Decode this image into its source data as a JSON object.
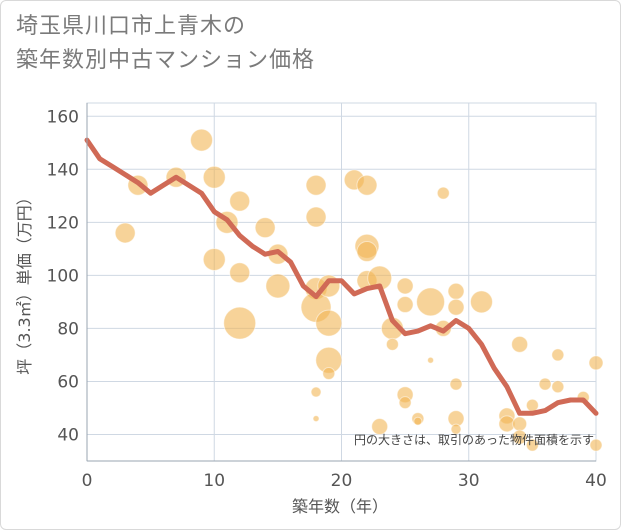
{
  "title_line1": "埼玉県川口市上青木の",
  "title_line2": "築年数別中古マンション価格",
  "colors": {
    "bubble": "#f2b555",
    "line": "#d06a56",
    "grid": "#cfd8e3",
    "axis": "#9aa5b1"
  },
  "chart_data": {
    "type": "scatter",
    "xlabel": "築年数（年）",
    "ylabel": "坪（3.3㎡）単価（万円）",
    "xlim": [
      0,
      40
    ],
    "ylim": [
      30,
      165
    ],
    "xticks": [
      "0",
      "10",
      "20",
      "30",
      "40"
    ],
    "yticks": [
      "40",
      "60",
      "80",
      "100",
      "120",
      "140",
      "160"
    ],
    "note": "円の大きさは、取引のあった物件面積を示す",
    "bubbles": [
      {
        "x": 3,
        "y": 116,
        "r": 10
      },
      {
        "x": 4,
        "y": 134,
        "r": 10
      },
      {
        "x": 7,
        "y": 137,
        "r": 10
      },
      {
        "x": 9,
        "y": 151,
        "r": 11
      },
      {
        "x": 10,
        "y": 137,
        "r": 11
      },
      {
        "x": 10,
        "y": 106,
        "r": 11
      },
      {
        "x": 11,
        "y": 120,
        "r": 11
      },
      {
        "x": 12,
        "y": 128,
        "r": 10
      },
      {
        "x": 12,
        "y": 101,
        "r": 10
      },
      {
        "x": 12,
        "y": 82,
        "r": 16
      },
      {
        "x": 14,
        "y": 118,
        "r": 10
      },
      {
        "x": 15,
        "y": 108,
        "r": 10
      },
      {
        "x": 15,
        "y": 96,
        "r": 12
      },
      {
        "x": 18,
        "y": 134,
        "r": 10
      },
      {
        "x": 18,
        "y": 122,
        "r": 10
      },
      {
        "x": 18,
        "y": 95,
        "r": 11
      },
      {
        "x": 18,
        "y": 88,
        "r": 15
      },
      {
        "x": 18,
        "y": 56,
        "r": 5
      },
      {
        "x": 18,
        "y": 46,
        "r": 3
      },
      {
        "x": 19,
        "y": 96,
        "r": 11
      },
      {
        "x": 19,
        "y": 82,
        "r": 13
      },
      {
        "x": 19,
        "y": 68,
        "r": 13
      },
      {
        "x": 19,
        "y": 63,
        "r": 6
      },
      {
        "x": 21,
        "y": 136,
        "r": 10
      },
      {
        "x": 22,
        "y": 134,
        "r": 10
      },
      {
        "x": 22,
        "y": 111,
        "r": 12
      },
      {
        "x": 22,
        "y": 109,
        "r": 10
      },
      {
        "x": 22,
        "y": 98,
        "r": 10
      },
      {
        "x": 23,
        "y": 99,
        "r": 12
      },
      {
        "x": 23,
        "y": 43,
        "r": 8
      },
      {
        "x": 24,
        "y": 80,
        "r": 11
      },
      {
        "x": 24,
        "y": 74,
        "r": 6
      },
      {
        "x": 25,
        "y": 96,
        "r": 8
      },
      {
        "x": 25,
        "y": 89,
        "r": 8
      },
      {
        "x": 25,
        "y": 55,
        "r": 8
      },
      {
        "x": 25,
        "y": 52,
        "r": 6
      },
      {
        "x": 26,
        "y": 46,
        "r": 6
      },
      {
        "x": 26,
        "y": 45,
        "r": 4
      },
      {
        "x": 27,
        "y": 90,
        "r": 14
      },
      {
        "x": 27,
        "y": 68,
        "r": 3
      },
      {
        "x": 28,
        "y": 131,
        "r": 6
      },
      {
        "x": 28,
        "y": 80,
        "r": 8
      },
      {
        "x": 29,
        "y": 94,
        "r": 8
      },
      {
        "x": 29,
        "y": 88,
        "r": 8
      },
      {
        "x": 29,
        "y": 59,
        "r": 6
      },
      {
        "x": 29,
        "y": 46,
        "r": 8
      },
      {
        "x": 29,
        "y": 42,
        "r": 5
      },
      {
        "x": 31,
        "y": 90,
        "r": 11
      },
      {
        "x": 33,
        "y": 47,
        "r": 8
      },
      {
        "x": 33,
        "y": 44,
        "r": 8
      },
      {
        "x": 34,
        "y": 74,
        "r": 8
      },
      {
        "x": 34,
        "y": 44,
        "r": 7
      },
      {
        "x": 34,
        "y": 39,
        "r": 7
      },
      {
        "x": 35,
        "y": 51,
        "r": 6
      },
      {
        "x": 35,
        "y": 36,
        "r": 6
      },
      {
        "x": 36,
        "y": 59,
        "r": 6
      },
      {
        "x": 37,
        "y": 70,
        "r": 6
      },
      {
        "x": 37,
        "y": 58,
        "r": 6
      },
      {
        "x": 39,
        "y": 54,
        "r": 6
      },
      {
        "x": 40,
        "y": 67,
        "r": 7
      },
      {
        "x": 40,
        "y": 36,
        "r": 6
      }
    ],
    "trend": [
      {
        "x": 0,
        "y": 151
      },
      {
        "x": 1,
        "y": 144
      },
      {
        "x": 2,
        "y": 141
      },
      {
        "x": 3,
        "y": 138
      },
      {
        "x": 4,
        "y": 135
      },
      {
        "x": 5,
        "y": 131
      },
      {
        "x": 6,
        "y": 134
      },
      {
        "x": 7,
        "y": 137
      },
      {
        "x": 8,
        "y": 134
      },
      {
        "x": 9,
        "y": 131
      },
      {
        "x": 10,
        "y": 124
      },
      {
        "x": 11,
        "y": 121
      },
      {
        "x": 12,
        "y": 115
      },
      {
        "x": 13,
        "y": 111
      },
      {
        "x": 14,
        "y": 108
      },
      {
        "x": 15,
        "y": 109
      },
      {
        "x": 16,
        "y": 105
      },
      {
        "x": 17,
        "y": 96
      },
      {
        "x": 18,
        "y": 92
      },
      {
        "x": 19,
        "y": 98
      },
      {
        "x": 20,
        "y": 98
      },
      {
        "x": 21,
        "y": 93
      },
      {
        "x": 22,
        "y": 95
      },
      {
        "x": 23,
        "y": 96
      },
      {
        "x": 24,
        "y": 83
      },
      {
        "x": 25,
        "y": 78
      },
      {
        "x": 26,
        "y": 79
      },
      {
        "x": 27,
        "y": 81
      },
      {
        "x": 28,
        "y": 79
      },
      {
        "x": 29,
        "y": 83
      },
      {
        "x": 30,
        "y": 80
      },
      {
        "x": 31,
        "y": 74
      },
      {
        "x": 32,
        "y": 65
      },
      {
        "x": 33,
        "y": 58
      },
      {
        "x": 34,
        "y": 48
      },
      {
        "x": 35,
        "y": 48
      },
      {
        "x": 36,
        "y": 49
      },
      {
        "x": 37,
        "y": 52
      },
      {
        "x": 38,
        "y": 53
      },
      {
        "x": 39,
        "y": 53
      },
      {
        "x": 40,
        "y": 48
      }
    ]
  }
}
